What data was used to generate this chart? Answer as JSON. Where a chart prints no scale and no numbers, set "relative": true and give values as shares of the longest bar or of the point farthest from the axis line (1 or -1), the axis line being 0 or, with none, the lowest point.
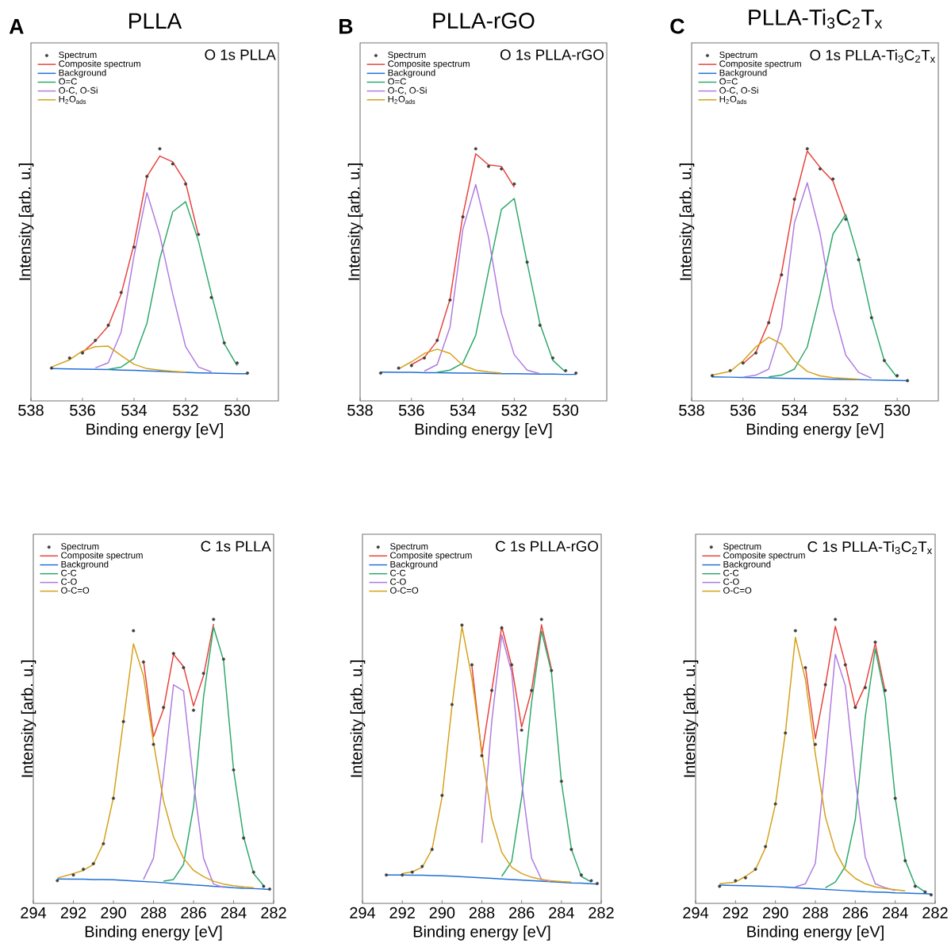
{
  "chart_data": [
    {
      "type": "line",
      "title": "PLLA",
      "subtitle": "O 1s  PLLA",
      "annotations": [
        "A"
      ],
      "xlabel": "Binding energy [eV]",
      "ylabel": "Intensity [arb. u.]",
      "relative": true,
      "tick_labels": "x",
      "legend": "top left",
      "xlim": [
        538,
        528.4
      ],
      "xticks": [
        538,
        536,
        534,
        532,
        530
      ],
      "x": [
        537.2,
        536.5,
        536,
        535.5,
        535,
        534.5,
        534,
        533.5,
        533,
        532.5,
        532,
        531.5,
        531,
        530.5,
        530,
        529.6
      ],
      "series": [
        {
          "name": "Spectrum",
          "type": "scatter",
          "marker": "circle",
          "color": "#3f3f3f",
          "values": [
            0.13,
            0.17,
            0.19,
            0.24,
            0.3,
            0.43,
            0.61,
            0.89,
            1.0,
            0.94,
            0.86,
            0.66,
            0.41,
            0.23,
            0.15,
            0.11
          ]
        },
        {
          "name": "Composite spectrum",
          "color": "#e8403a",
          "values": [
            null,
            null,
            0.192,
            0.238,
            0.297,
            0.424,
            0.622,
            0.89,
            0.971,
            0.948,
            0.866,
            0.657,
            null,
            null,
            null,
            null
          ]
        },
        {
          "name": "Background",
          "color": "#1f6fd6",
          "values": [
            0.128,
            0.127,
            0.126,
            0.125,
            0.124,
            0.122,
            0.121,
            0.119,
            0.117,
            0.115,
            0.113,
            0.111,
            0.11,
            0.109,
            0.108,
            0.108
          ]
        },
        {
          "name": "O=C",
          "color": "#2ca86a",
          "values": [
            null,
            null,
            null,
            null,
            0.125,
            0.134,
            0.169,
            0.308,
            0.564,
            0.75,
            0.79,
            0.634,
            0.424,
            0.227,
            0.14,
            null
          ]
        },
        {
          "name": "O-C, O-Si",
          "color": "#b07ae0",
          "values": [
            null,
            null,
            null,
            0.131,
            0.151,
            0.273,
            0.576,
            0.826,
            0.657,
            0.424,
            0.215,
            0.134,
            0.115,
            null,
            null,
            null
          ]
        },
        {
          "name": "H$_{2}$O$_{ads}$",
          "color": "#d4a017",
          "values": [
            0.134,
            0.163,
            0.198,
            0.215,
            0.217,
            0.18,
            0.145,
            0.128,
            0.122,
            0.117,
            0.114,
            null,
            null,
            null,
            null,
            null
          ]
        }
      ]
    },
    {
      "type": "line",
      "title": "PLLA-rGO",
      "subtitle": "O 1s  PLLA-rGO",
      "annotations": [
        "B"
      ],
      "xlabel": "Binding energy [eV]",
      "ylabel": "Intensity [arb. u.]",
      "relative": true,
      "tick_labels": "x",
      "legend": "top left",
      "xlim": [
        538,
        528.4
      ],
      "xticks": [
        538,
        536,
        534,
        532,
        530
      ],
      "x": [
        537.2,
        536.5,
        536,
        535.5,
        535,
        534.5,
        534,
        533.5,
        533,
        532.5,
        532,
        531.5,
        531,
        530.5,
        530,
        529.6
      ],
      "series": [
        {
          "name": "Spectrum",
          "type": "scatter",
          "marker": "circle",
          "color": "#3f3f3f",
          "values": [
            0.11,
            0.13,
            0.14,
            0.17,
            0.24,
            0.4,
            0.73,
            1.0,
            0.93,
            0.92,
            0.86,
            0.55,
            0.3,
            0.17,
            0.12,
            0.11
          ]
        },
        {
          "name": "Composite spectrum",
          "color": "#e8403a",
          "values": [
            null,
            null,
            0.144,
            0.172,
            0.238,
            0.404,
            0.736,
            0.98,
            0.936,
            0.93,
            0.847,
            null,
            null,
            null,
            null,
            null
          ]
        },
        {
          "name": "Background",
          "color": "#1f6fd6",
          "values": [
            0.114,
            0.113,
            0.113,
            0.112,
            0.112,
            0.111,
            0.11,
            0.11,
            0.109,
            0.108,
            0.108,
            0.107,
            0.106,
            0.106,
            0.105,
            0.105
          ]
        },
        {
          "name": "O=C",
          "color": "#2ca86a",
          "values": [
            null,
            null,
            null,
            null,
            0.113,
            0.122,
            0.15,
            0.26,
            0.515,
            0.759,
            0.803,
            0.548,
            0.305,
            0.161,
            0.114,
            null
          ]
        },
        {
          "name": "O-C, O-Si",
          "color": "#b07ae0",
          "values": [
            null,
            null,
            null,
            0.118,
            0.144,
            0.293,
            0.681,
            0.858,
            0.648,
            0.349,
            0.183,
            0.122,
            0.108,
            null,
            null,
            null
          ]
        },
        {
          "name": "H$_{2}$O$_{ads}$",
          "color": "#d4a017",
          "values": [
            null,
            0.127,
            0.155,
            0.188,
            0.205,
            0.188,
            0.141,
            0.122,
            0.115,
            0.11,
            null,
            null,
            null,
            null,
            null,
            null
          ]
        }
      ]
    },
    {
      "type": "line",
      "title": "PLLA-Ti$_{3}$C$_{2}$T$_{x}$",
      "subtitle": "O 1s PLLA-Ti$_{3}$C$_{2}$T$_{x}$",
      "annotations": [
        "C"
      ],
      "xlabel": "Binding energy [eV]",
      "ylabel": "Intensity [arb. u.]",
      "relative": true,
      "tick_labels": "x",
      "legend": "top left",
      "xlim": [
        538,
        528.4
      ],
      "xticks": [
        538,
        536,
        534,
        532,
        530
      ],
      "x": [
        537.2,
        536.5,
        536,
        535.5,
        535,
        534.5,
        534,
        533.5,
        533,
        532.5,
        532,
        531.5,
        531,
        530.5,
        530,
        529.6
      ],
      "series": [
        {
          "name": "Spectrum",
          "type": "scatter",
          "marker": "circle",
          "color": "#3f3f3f",
          "values": [
            0.1,
            0.12,
            0.15,
            0.19,
            0.31,
            0.5,
            0.8,
            1.0,
            0.92,
            0.88,
            0.72,
            0.56,
            0.33,
            0.16,
            0.1,
            0.08
          ]
        },
        {
          "name": "Composite spectrum",
          "color": "#e8403a",
          "values": [
            null,
            null,
            0.148,
            0.192,
            0.312,
            0.509,
            0.794,
            0.991,
            0.926,
            0.871,
            0.728,
            null,
            null,
            null,
            null,
            null
          ]
        },
        {
          "name": "Background",
          "color": "#1f6fd6",
          "values": [
            0.095,
            0.094,
            0.093,
            0.092,
            0.091,
            0.09,
            0.089,
            0.088,
            0.087,
            0.086,
            0.085,
            0.084,
            0.083,
            0.082,
            0.081,
            0.08
          ]
        },
        {
          "name": "O=C",
          "color": "#2ca86a",
          "values": [
            null,
            null,
            null,
            null,
            0.095,
            0.102,
            0.126,
            0.214,
            0.422,
            0.662,
            0.739,
            0.564,
            0.334,
            0.159,
            0.093,
            null
          ]
        },
        {
          "name": "O-C, O-Si",
          "color": "#b07ae0",
          "values": [
            null,
            null,
            0.094,
            0.102,
            0.126,
            0.29,
            0.706,
            0.865,
            0.662,
            0.367,
            0.181,
            0.113,
            0.09,
            null,
            null,
            null
          ]
        },
        {
          "name": "H$_{2}$O$_{ads}$",
          "color": "#d4a017",
          "values": [
            0.102,
            0.117,
            0.159,
            0.214,
            0.252,
            0.225,
            0.159,
            0.117,
            0.099,
            0.092,
            0.089,
            0.086,
            null,
            null,
            null,
            null
          ]
        }
      ]
    },
    {
      "type": "line",
      "subtitle": "C 1s  PLLA",
      "xlabel": "Binding energy [eV]",
      "ylabel": "Intensity [arb. u.]",
      "relative": true,
      "tick_labels": "x",
      "legend": "top left",
      "xlim": [
        294,
        282
      ],
      "xticks": [
        294,
        292,
        290,
        288,
        286,
        284,
        282
      ],
      "x": [
        292.8,
        292,
        291.5,
        291,
        290.5,
        290,
        289.5,
        289,
        288.5,
        288,
        287.5,
        287,
        286.5,
        286,
        285.5,
        285,
        284.5,
        284,
        283.5,
        283,
        282.5,
        282.2
      ],
      "series": [
        {
          "name": "Spectrum",
          "type": "scatter",
          "marker": "circle",
          "color": "#3f3f3f",
          "values": [
            0.08,
            0.1,
            0.12,
            0.14,
            0.21,
            0.37,
            0.64,
            0.96,
            0.85,
            0.56,
            0.69,
            0.88,
            0.83,
            0.68,
            0.81,
            1.0,
            0.86,
            0.47,
            0.23,
            0.11,
            0.06,
            0.05
          ]
        },
        {
          "name": "Composite spectrum",
          "color": "#e8403a",
          "values": [
            null,
            null,
            null,
            null,
            null,
            null,
            null,
            null,
            0.855,
            0.587,
            0.684,
            0.877,
            0.834,
            0.695,
            0.802,
            0.984,
            null,
            null,
            null,
            null,
            null,
            null
          ]
        },
        {
          "name": "Background",
          "color": "#1f6fd6",
          "values": [
            0.086,
            0.085,
            0.085,
            0.084,
            0.084,
            0.083,
            0.081,
            0.079,
            0.077,
            0.075,
            0.073,
            0.07,
            0.068,
            0.065,
            0.063,
            0.06,
            0.058,
            0.055,
            0.053,
            0.052,
            0.05,
            0.049
          ]
        },
        {
          "name": "C-C",
          "color": "#2ca86a",
          "values": [
            null,
            null,
            null,
            null,
            null,
            null,
            null,
            null,
            null,
            null,
            0.078,
            0.084,
            0.137,
            0.341,
            0.727,
            0.973,
            0.855,
            0.469,
            0.234,
            0.105,
            0.062,
            null
          ]
        },
        {
          "name": "C-O",
          "color": "#b07ae0",
          "values": [
            null,
            null,
            null,
            null,
            null,
            null,
            null,
            null,
            0.084,
            0.159,
            0.448,
            0.77,
            0.748,
            0.427,
            0.159,
            0.068,
            0.056,
            null,
            null,
            null,
            null,
            null
          ]
        },
        {
          "name": "O-C=O",
          "color": "#d4a017",
          "values": [
            0.089,
            0.105,
            0.116,
            0.137,
            0.212,
            0.373,
            0.641,
            0.914,
            0.802,
            0.566,
            0.362,
            0.234,
            0.159,
            0.116,
            0.094,
            0.078,
            0.068,
            0.062,
            0.058,
            0.055,
            null,
            null
          ]
        }
      ]
    },
    {
      "type": "line",
      "subtitle": "C 1s  PLLA-rGO",
      "xlabel": "Binding energy [eV]",
      "ylabel": "Intensity [arb. u.]",
      "relative": true,
      "tick_labels": "x",
      "legend": "top left",
      "xlim": [
        294,
        282
      ],
      "xticks": [
        294,
        292,
        290,
        288,
        286,
        284,
        282
      ],
      "x": [
        292.8,
        292,
        291.5,
        291,
        290.5,
        290,
        289.5,
        289,
        288.5,
        288,
        287.5,
        287,
        286.5,
        286,
        285.5,
        285,
        284.5,
        284,
        283.5,
        283,
        282.5,
        282.2
      ],
      "series": [
        {
          "name": "Spectrum",
          "type": "scatter",
          "marker": "circle",
          "color": "#3f3f3f",
          "values": [
            0.1,
            0.1,
            0.11,
            0.13,
            0.19,
            0.38,
            0.7,
            0.98,
            0.84,
            0.52,
            0.75,
            0.97,
            0.84,
            0.61,
            0.75,
            1.0,
            0.82,
            0.43,
            0.19,
            0.1,
            0.08,
            0.07
          ]
        },
        {
          "name": "Composite spectrum",
          "color": "#e8403a",
          "values": [
            null,
            null,
            null,
            null,
            null,
            null,
            null,
            null,
            0.836,
            0.524,
            0.75,
            0.975,
            0.836,
            0.621,
            0.75,
            0.981,
            0.825,
            null,
            null,
            null,
            null,
            null
          ]
        },
        {
          "name": "Background",
          "color": "#1f6fd6",
          "values": [
            0.1,
            0.1,
            0.099,
            0.099,
            0.098,
            0.097,
            0.096,
            0.094,
            0.092,
            0.09,
            0.088,
            0.086,
            0.084,
            0.082,
            0.08,
            0.078,
            0.076,
            0.074,
            0.072,
            0.071,
            0.069,
            0.068
          ]
        },
        {
          "name": "C-C",
          "color": "#2ca86a",
          "values": [
            null,
            null,
            null,
            null,
            null,
            null,
            null,
            null,
            null,
            null,
            null,
            0.095,
            0.148,
            0.374,
            0.707,
            0.959,
            0.814,
            0.427,
            0.191,
            0.095,
            0.075,
            null
          ]
        },
        {
          "name": "C-O",
          "color": "#b07ae0",
          "values": [
            null,
            null,
            null,
            null,
            null,
            null,
            null,
            null,
            null,
            0.213,
            0.642,
            0.945,
            0.814,
            0.427,
            0.159,
            0.084,
            0.075,
            null,
            null,
            null,
            null,
            null
          ]
        },
        {
          "name": "O-C=O",
          "color": "#d4a017",
          "values": [
            null,
            0.105,
            0.111,
            0.127,
            0.191,
            0.374,
            0.696,
            0.975,
            0.793,
            0.535,
            0.299,
            0.18,
            0.127,
            0.105,
            0.092,
            0.084,
            0.08,
            0.077,
            0.075,
            null,
            null,
            null
          ]
        }
      ]
    },
    {
      "type": "line",
      "subtitle": "C 1s PLLA-Ti$_{3}$C$_{2}$T$_{x}$",
      "xlabel": "Binding energy [eV]",
      "ylabel": "Intensity [arb. u.]",
      "relative": true,
      "tick_labels": "x",
      "legend": "top left",
      "xlim": [
        294,
        282
      ],
      "xticks": [
        294,
        292,
        290,
        288,
        286,
        284,
        282
      ],
      "x": [
        292.8,
        292,
        291.5,
        291,
        290.5,
        290,
        289.5,
        289,
        288.5,
        288,
        287.5,
        287,
        286.5,
        286,
        285.5,
        285,
        284.5,
        284,
        283.5,
        283,
        282.5,
        282.2
      ],
      "series": [
        {
          "name": "Spectrum",
          "type": "scatter",
          "marker": "circle",
          "color": "#3f3f3f",
          "values": [
            0.06,
            0.08,
            0.09,
            0.12,
            0.2,
            0.35,
            0.6,
            0.96,
            0.83,
            0.56,
            0.77,
            1.0,
            0.84,
            0.69,
            0.76,
            0.92,
            0.75,
            0.37,
            0.15,
            0.06,
            0.04,
            0.03
          ]
        },
        {
          "name": "Composite spectrum",
          "color": "#e8403a",
          "values": [
            null,
            null,
            null,
            null,
            null,
            null,
            null,
            null,
            0.833,
            0.58,
            0.767,
            0.976,
            0.844,
            0.69,
            0.767,
            0.915,
            0.745,
            null,
            null,
            null,
            null,
            null
          ]
        },
        {
          "name": "Background",
          "color": "#1f6fd6",
          "values": [
            0.064,
            0.063,
            0.062,
            0.061,
            0.06,
            0.059,
            0.057,
            0.055,
            0.053,
            0.051,
            0.049,
            0.047,
            0.045,
            0.043,
            0.041,
            0.04,
            0.039,
            0.037,
            0.036,
            0.035,
            0.034,
            0.033
          ]
        },
        {
          "name": "C-C",
          "color": "#2ca86a",
          "values": [
            null,
            null,
            null,
            null,
            null,
            null,
            null,
            null,
            null,
            null,
            0.055,
            0.075,
            0.13,
            0.295,
            0.657,
            0.896,
            0.723,
            0.371,
            0.152,
            0.064,
            0.04,
            null
          ]
        },
        {
          "name": "C-O",
          "color": "#b07ae0",
          "values": [
            null,
            null,
            null,
            null,
            null,
            null,
            null,
            0.058,
            0.069,
            0.141,
            0.492,
            0.877,
            0.767,
            0.437,
            0.163,
            0.069,
            0.055,
            0.045,
            null,
            null,
            null,
            null
          ]
        },
        {
          "name": "O-C=O",
          "color": "#d4a017",
          "values": [
            0.069,
            0.075,
            0.095,
            0.119,
            0.196,
            0.349,
            0.602,
            0.937,
            0.789,
            0.525,
            0.305,
            0.184,
            0.119,
            0.088,
            0.069,
            0.058,
            0.052,
            0.048,
            0.044,
            null,
            null,
            null
          ]
        }
      ]
    }
  ]
}
